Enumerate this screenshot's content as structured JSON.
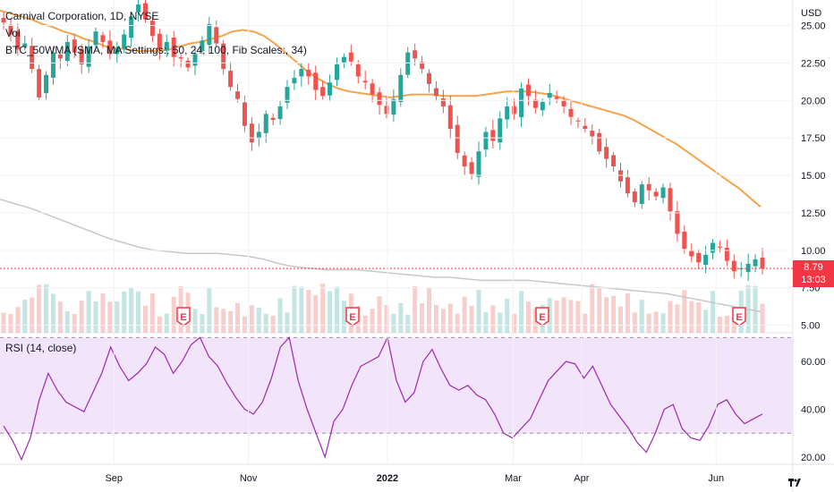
{
  "header": {
    "title": "Carnival Corporation, 1D, NYSE",
    "vol_label": "Vol",
    "ma_label": "BTC_50WMA (SMA, MA Settings:, 50, 24, 100, Fib Scales:, 34)",
    "currency": "USD"
  },
  "last_price": {
    "value": "8.79",
    "countdown": "13:03"
  },
  "rsi_label": "RSI (14, close)",
  "earnings_marker": "E",
  "colors": {
    "up": "#26a69a",
    "down": "#ef5350",
    "ma50": "#f7a34b",
    "ma200": "#c8c8c8",
    "rsi_line": "#9c27b0",
    "rsi_band": "#f0e3fa",
    "last_price_line": "#f23645"
  },
  "chart_data": [
    {
      "type": "candlestick",
      "title": "Carnival Corporation, 1D, NYSE",
      "ylabel": "USD",
      "ylim": [
        4.5,
        26.7
      ],
      "y_ticks": [
        "5.00",
        "7.50",
        "10.00",
        "12.50",
        "15.00",
        "17.50",
        "20.00",
        "22.50",
        "25.00"
      ],
      "x_ticks": [
        "Sep",
        "Nov",
        "2022",
        "Mar",
        "Apr",
        "Jun"
      ],
      "x_tick_dates": [
        "2021-09-01",
        "2021-11-01",
        "2022-01-03",
        "2022-03-01",
        "2022-04-01",
        "2022-06-01"
      ],
      "date_range": [
        "2021-07-13",
        "2022-06-22"
      ],
      "series": [
        {
          "name": "Carnival Corporation",
          "path": "close",
          "close": [
            25.2,
            24.4,
            23.4,
            23.8,
            22.1,
            20.2,
            21.7,
            23.2,
            22.8,
            23.9,
            23.2,
            22.4,
            23.6,
            24.6,
            23.9,
            23.1,
            23.5,
            24.4,
            25.6,
            26.4,
            25.4,
            24.3,
            23.4,
            23.9,
            22.9,
            22.8,
            22.2,
            23.1,
            24.0,
            25.1,
            23.8,
            22.1,
            20.9,
            20.1,
            18.3,
            17.2,
            17.9,
            19.1,
            18.7,
            19.6,
            20.9,
            21.5,
            22.1,
            21.6,
            20.7,
            20.3,
            21.2,
            22.4,
            22.9,
            22.6,
            21.6,
            21.2,
            20.4,
            19.7,
            19.1,
            20.1,
            21.7,
            23.2,
            22.8,
            22.1,
            21.1,
            20.3,
            19.6,
            18.1,
            16.5,
            15.6,
            15.1,
            16.6,
            17.9,
            17.3,
            18.8,
            19.6,
            19.1,
            20.8,
            20.3,
            19.5,
            19.9,
            20.5,
            20.1,
            19.6,
            18.9,
            18.6,
            18.1,
            17.6,
            16.6,
            16.1,
            15.6,
            14.6,
            13.8,
            13.2,
            14.4,
            14.0,
            13.6,
            14.2,
            12.6,
            11.1,
            10.1,
            9.6,
            9.2,
            9.7,
            10.5,
            10.2,
            9.3,
            8.6,
            8.8,
            9.1,
            9.4,
            8.79
          ]
        },
        {
          "name": "BTC_50WMA",
          "ma": [
            26.0,
            25.8,
            25.6,
            25.4,
            25.1,
            24.9,
            24.6,
            24.4,
            24.1,
            23.9,
            23.6,
            23.5,
            23.4,
            23.3,
            23.3,
            23.3,
            23.4,
            23.6,
            23.8,
            23.9,
            24.1,
            24.3,
            24.6,
            24.7,
            24.6,
            24.3,
            23.8,
            23.2,
            22.6,
            22.0,
            21.5,
            21.1,
            20.8,
            20.6,
            20.5,
            20.4,
            20.3,
            20.2,
            20.3,
            20.4,
            20.4,
            20.4,
            20.3,
            20.3,
            20.3,
            20.3,
            20.4,
            20.5,
            20.6,
            20.6,
            20.6,
            20.5,
            20.4,
            20.2,
            20.0,
            19.8,
            19.6,
            19.4,
            19.2,
            19.0,
            18.7,
            18.3,
            17.9,
            17.5,
            17.1,
            16.6,
            16.1,
            15.6,
            15.1,
            14.6,
            14.1,
            13.5,
            12.9
          ]
        },
        {
          "name": "MA 200",
          "ma": [
            13.4,
            13.1,
            12.8,
            12.4,
            12.0,
            11.6,
            11.2,
            10.8,
            10.5,
            10.2,
            10.0,
            9.9,
            9.8,
            9.8,
            9.8,
            9.7,
            9.6,
            9.4,
            9.1,
            8.9,
            8.8,
            8.7,
            8.7,
            8.7,
            8.6,
            8.5,
            8.4,
            8.3,
            8.2,
            8.2,
            8.1,
            8.0,
            8.0,
            8.0,
            8.0,
            7.9,
            7.8,
            7.7,
            7.6,
            7.5,
            7.4,
            7.3,
            7.2,
            7.1,
            6.9,
            6.7,
            6.5,
            6.3,
            6.1,
            5.9
          ]
        }
      ],
      "last_price": 8.79
    },
    {
      "type": "line",
      "title": "RSI (14, close)",
      "ylim": [
        17,
        72
      ],
      "y_ticks": [
        "20.00",
        "40.00",
        "60.00"
      ],
      "bands": {
        "upper": 70,
        "lower": 30
      },
      "series": [
        {
          "name": "RSI (14, close)",
          "values": [
            33,
            27,
            19,
            28,
            44,
            55,
            48,
            43,
            41,
            39,
            47,
            55,
            66,
            58,
            52,
            55,
            59,
            66,
            63,
            55,
            60,
            67,
            70,
            62,
            58,
            51,
            45,
            40,
            38,
            43,
            53,
            66,
            70,
            52,
            40,
            30,
            20,
            35,
            40,
            50,
            58,
            60,
            62,
            70,
            52,
            43,
            47,
            60,
            65,
            57,
            50,
            48,
            50,
            46,
            44,
            38,
            30,
            28,
            32,
            36,
            44,
            52,
            56,
            60,
            59,
            53,
            58,
            50,
            42,
            37,
            32,
            26,
            22,
            30,
            40,
            42,
            32,
            28,
            27,
            33,
            42,
            44,
            38,
            34,
            36,
            38
          ]
        }
      ]
    }
  ]
}
